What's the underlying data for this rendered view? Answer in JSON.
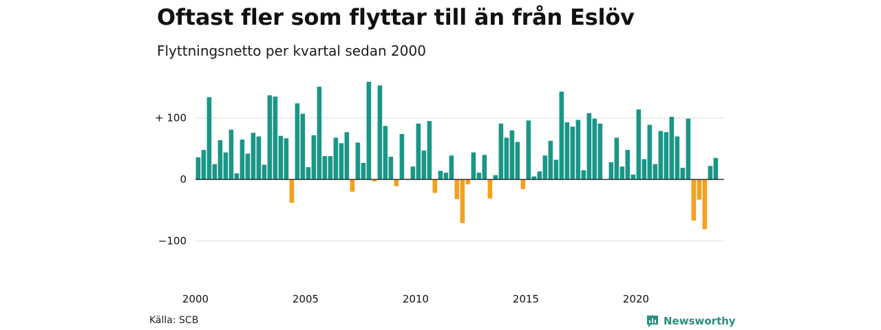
{
  "title": "Oftast fler som flyttar till än från Eslöv",
  "subtitle": "Flyttningsnetto per kvartal sedan 2000",
  "source": "Källa: SCB",
  "brand": "Newsworthy",
  "colors": {
    "positive": "#1a9687",
    "negative": "#f5a01e",
    "grid": "#dddddd",
    "brand": "#2a8f7f"
  },
  "chart_data": {
    "type": "bar",
    "title": "Oftast fler som flyttar till än från Eslöv",
    "subtitle": "Flyttningsnetto per kvartal sedan 2000",
    "xlabel": "",
    "ylabel": "",
    "x_start_year": 2000,
    "periods_per_year": 4,
    "x_ticks": [
      "2000",
      "2005",
      "2010",
      "2015",
      "2020"
    ],
    "y_ticks": [
      {
        "value": 100,
        "label": "+ 100"
      },
      {
        "value": 0,
        "label": "0"
      },
      {
        "value": -100,
        "label": "−100"
      }
    ],
    "ylim": [
      -150,
      160
    ],
    "grid": true,
    "values": [
      36,
      48,
      134,
      25,
      64,
      44,
      81,
      10,
      65,
      42,
      76,
      70,
      24,
      137,
      135,
      71,
      67,
      -38,
      124,
      107,
      20,
      72,
      151,
      38,
      38,
      68,
      59,
      77,
      -20,
      60,
      27,
      159,
      -3,
      153,
      87,
      37,
      -11,
      74,
      1,
      21,
      91,
      47,
      95,
      -22,
      14,
      11,
      39,
      -32,
      -71,
      -8,
      44,
      11,
      40,
      -31,
      7,
      91,
      68,
      80,
      61,
      -16,
      96,
      5,
      13,
      39,
      63,
      32,
      143,
      93,
      86,
      97,
      15,
      108,
      99,
      91,
      0,
      28,
      68,
      21,
      48,
      8,
      114,
      33,
      89,
      25,
      79,
      77,
      102,
      70,
      19,
      99,
      -67,
      -33,
      -81,
      22,
      35
    ]
  }
}
